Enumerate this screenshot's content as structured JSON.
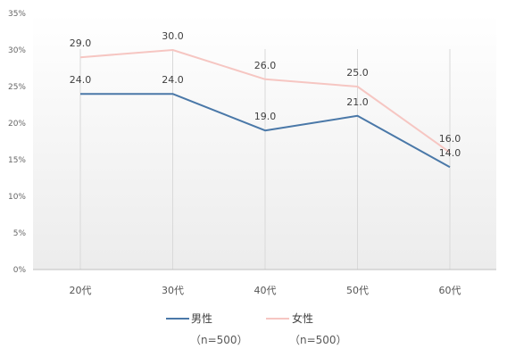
{
  "chart_data": {
    "type": "line",
    "categories": [
      "20代",
      "30代",
      "40代",
      "50代",
      "60代"
    ],
    "series": [
      {
        "name": "男性",
        "values": [
          24.0,
          24.0,
          19.0,
          21.0,
          14.0
        ],
        "color": "#4a78a8",
        "note": "（n=500）"
      },
      {
        "name": "女性",
        "values": [
          29.0,
          30.0,
          26.0,
          25.0,
          16.0
        ],
        "color": "#f6c6c2",
        "note": "（n=500）"
      }
    ],
    "y_ticks": [
      "0%",
      "5%",
      "10%",
      "15%",
      "20%",
      "25%",
      "30%",
      "35%"
    ],
    "ylim": [
      0,
      35
    ],
    "data_labels": true,
    "grid": "vertical-category-lines",
    "legend_position": "bottom",
    "title": "",
    "xlabel": "",
    "ylabel": ""
  }
}
